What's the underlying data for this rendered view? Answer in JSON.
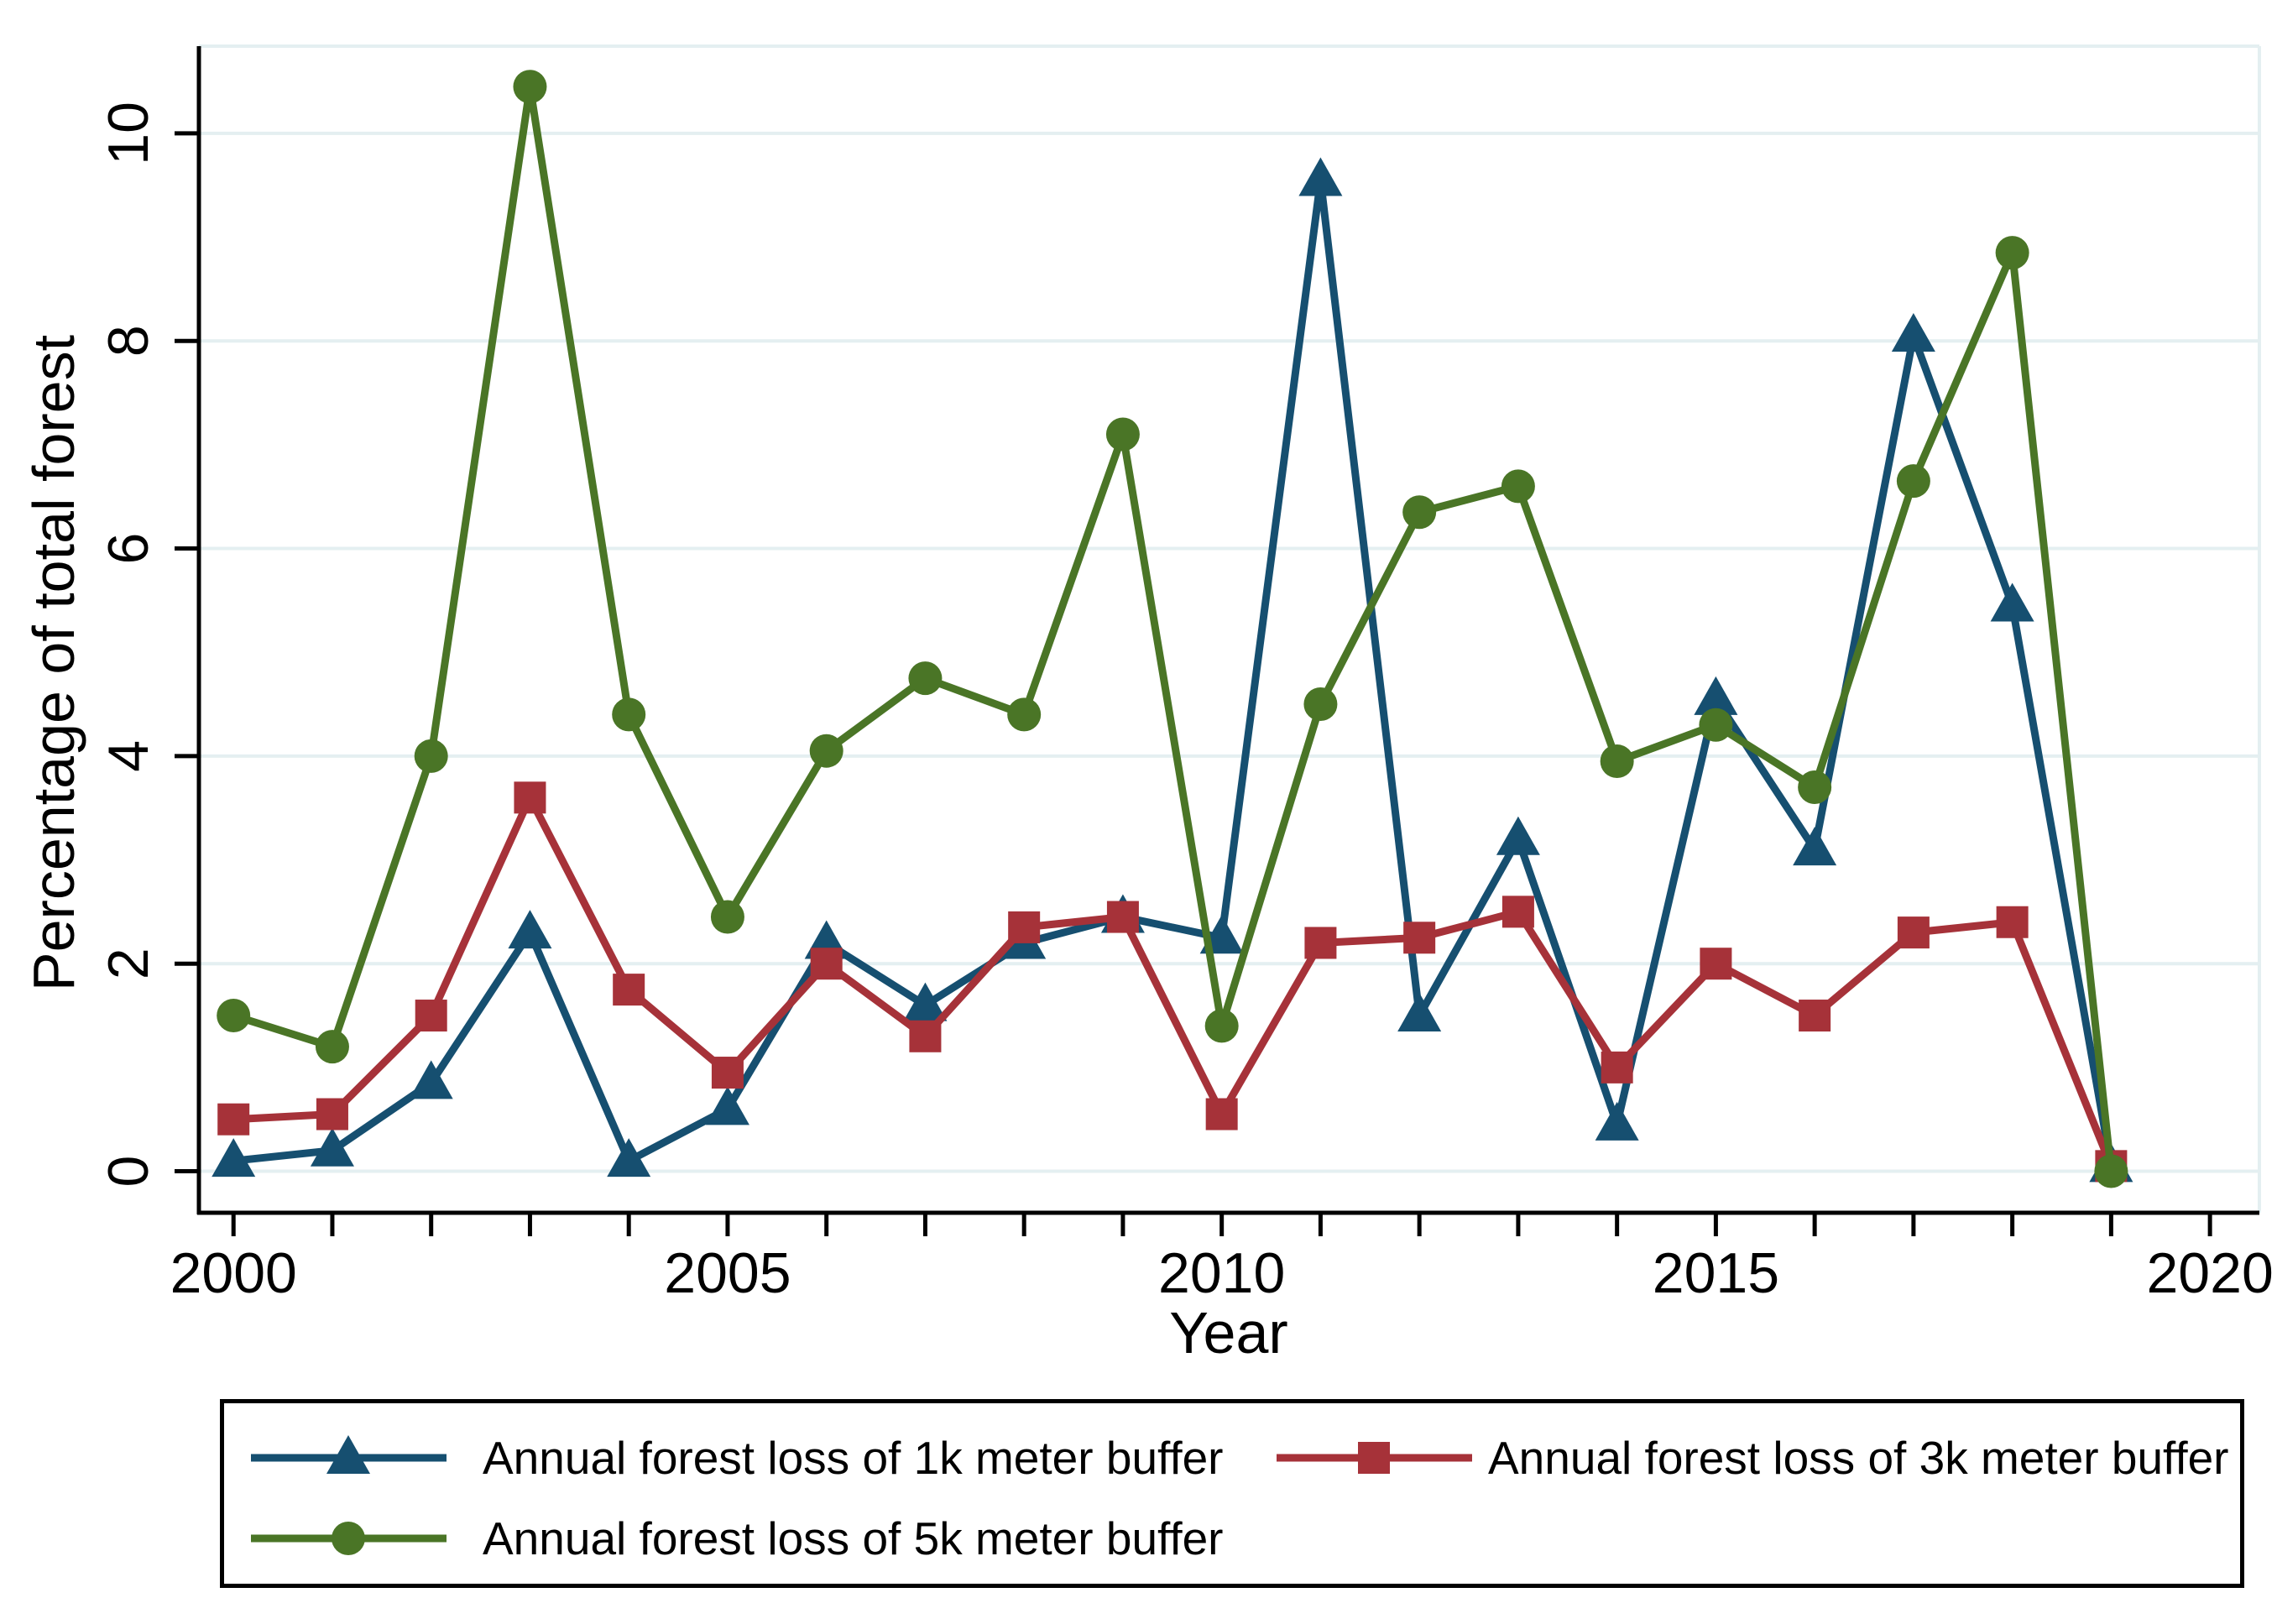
{
  "chart_data": {
    "type": "line",
    "title": "",
    "xlabel": "Year",
    "ylabel": "Percentage of total forest",
    "xlim": [
      1999.65,
      2020.5
    ],
    "ylim": [
      -0.4,
      10.84
    ],
    "grid": "horizontal-light",
    "legend_position": "bottom-box-2col",
    "x": [
      2000,
      2001,
      2002,
      2003,
      2004,
      2005,
      2006,
      2007,
      2008,
      2009,
      2010,
      2011,
      2012,
      2013,
      2014,
      2015,
      2016,
      2017,
      2018,
      2019
    ],
    "xticks_labeled": [
      2000,
      2005,
      2010,
      2015,
      2020
    ],
    "xticks_minor": [
      2000,
      2001,
      2002,
      2003,
      2004,
      2005,
      2006,
      2007,
      2008,
      2009,
      2010,
      2011,
      2012,
      2013,
      2014,
      2015,
      2016,
      2017,
      2018,
      2019,
      2020
    ],
    "yticks": [
      0,
      2,
      4,
      6,
      8,
      10
    ],
    "series": [
      {
        "name": "Annual forest loss of 1k meter buffer",
        "color": "#164F70",
        "marker": "triangle",
        "values": [
          0.1,
          0.2,
          0.85,
          2.3,
          0.1,
          0.6,
          2.2,
          1.6,
          2.2,
          2.45,
          2.25,
          9.55,
          1.5,
          3.2,
          0.45,
          4.55,
          3.1,
          8.05,
          5.45,
          0.05
        ]
      },
      {
        "name": "Annual forest loss of 3k meter buffer",
        "color": "#A63239",
        "marker": "square",
        "values": [
          0.5,
          0.55,
          1.5,
          3.6,
          1.75,
          0.95,
          2.0,
          1.3,
          2.35,
          2.45,
          0.55,
          2.2,
          2.25,
          2.5,
          1.0,
          2.0,
          1.5,
          2.3,
          2.4,
          0.05
        ]
      },
      {
        "name": "Annual forest loss of 5k meter buffer",
        "color": "#4A7526",
        "marker": "circle",
        "values": [
          1.5,
          1.2,
          4.0,
          10.45,
          4.4,
          2.45,
          4.05,
          4.75,
          4.4,
          7.1,
          1.4,
          4.5,
          6.35,
          6.6,
          3.95,
          4.3,
          3.7,
          6.65,
          8.85,
          0.0
        ]
      }
    ],
    "colors": {
      "axis": "#000000",
      "gridline": "#E4EFF1",
      "plot_border_light": "#E4EFF1",
      "background": "#FFFFFF"
    }
  }
}
